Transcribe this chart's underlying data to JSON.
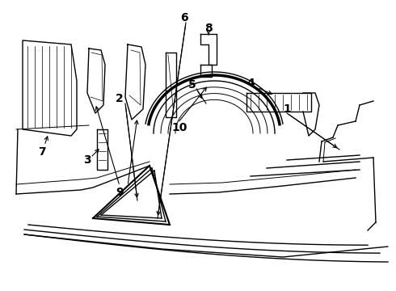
{
  "background_color": "#ffffff",
  "line_color": "#000000",
  "label_color": "#000000",
  "fig_width": 4.9,
  "fig_height": 3.6,
  "dpi": 100
}
